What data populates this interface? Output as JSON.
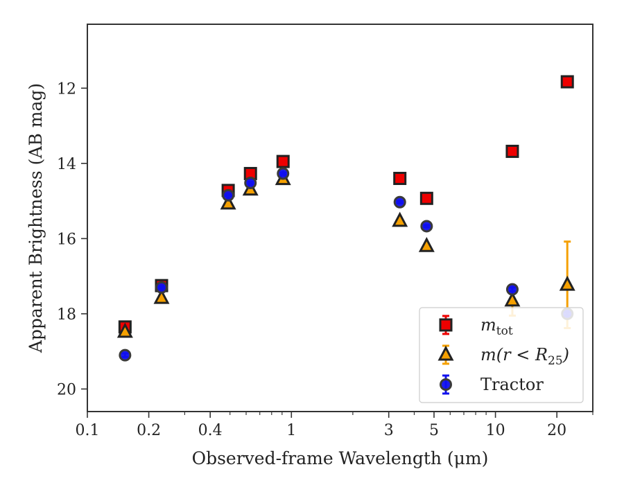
{
  "chart_data": {
    "type": "scatter",
    "xlabel": "Observed-frame Wavelength (μm)",
    "ylabel": "Apparent Brightness (AB mag)",
    "xscale": "log",
    "xlim": [
      0.1,
      30
    ],
    "ylim": [
      20.6,
      10.3
    ],
    "y_inverted": true,
    "xticks": [
      {
        "value": 0.1,
        "label": "0.1"
      },
      {
        "value": 0.2,
        "label": "0.2"
      },
      {
        "value": 0.4,
        "label": "0.4"
      },
      {
        "value": 1,
        "label": "1"
      },
      {
        "value": 3,
        "label": "3"
      },
      {
        "value": 5,
        "label": "5"
      },
      {
        "value": 10,
        "label": "10"
      },
      {
        "value": 20,
        "label": "20"
      }
    ],
    "yticks": [
      {
        "value": 12,
        "label": "12"
      },
      {
        "value": 14,
        "label": "14"
      },
      {
        "value": 16,
        "label": "16"
      },
      {
        "value": 18,
        "label": "18"
      },
      {
        "value": 20,
        "label": "20"
      }
    ],
    "grid": false,
    "legend_position": "lower-right",
    "series": [
      {
        "name": "m_tot",
        "legend_label": {
          "main": "m",
          "sub": "tot"
        },
        "marker": "square",
        "fill": "#ee0000",
        "edge": "#222222",
        "errcolor": "#ee0000",
        "points": [
          {
            "x": 0.153,
            "y": 18.35,
            "err": 0.08
          },
          {
            "x": 0.231,
            "y": 17.25,
            "err": 0.05
          },
          {
            "x": 0.49,
            "y": 14.72,
            "err": 0.03
          },
          {
            "x": 0.63,
            "y": 14.27,
            "err": 0.03
          },
          {
            "x": 0.91,
            "y": 13.95,
            "err": 0.03
          },
          {
            "x": 3.4,
            "y": 14.4,
            "err": 0.03
          },
          {
            "x": 4.6,
            "y": 14.93,
            "err": 0.03
          },
          {
            "x": 12.1,
            "y": 13.68,
            "err": 0.03
          },
          {
            "x": 22.5,
            "y": 11.83,
            "err": 0.03
          }
        ]
      },
      {
        "name": "m(r < R_25)",
        "legend_label": {
          "main": "m(r < R",
          "sub": "25",
          "tail": ")"
        },
        "marker": "triangle",
        "fill": "#f5a000",
        "edge": "#222222",
        "errcolor": "#f5a000",
        "points": [
          {
            "x": 0.153,
            "y": 18.48,
            "err": 0.06
          },
          {
            "x": 0.231,
            "y": 17.58,
            "err": 0.05
          },
          {
            "x": 0.49,
            "y": 15.07,
            "err": 0.03
          },
          {
            "x": 0.63,
            "y": 14.7,
            "err": 0.03
          },
          {
            "x": 0.91,
            "y": 14.42,
            "err": 0.03
          },
          {
            "x": 3.4,
            "y": 15.53,
            "err": 0.03
          },
          {
            "x": 4.6,
            "y": 16.2,
            "err": 0.03
          },
          {
            "x": 12.1,
            "y": 17.65,
            "err": 0.4
          },
          {
            "x": 22.5,
            "y": 17.23,
            "err": 1.15
          }
        ]
      },
      {
        "name": "Tractor",
        "legend_label": {
          "main": "Tractor"
        },
        "marker": "circle",
        "fill": "#1010ee",
        "edge": "#3a3a3a",
        "errcolor": "#1010ee",
        "points": [
          {
            "x": 0.153,
            "y": 19.1,
            "err": 0.05
          },
          {
            "x": 0.231,
            "y": 17.3,
            "err": 0.03
          },
          {
            "x": 0.49,
            "y": 14.85,
            "err": 0.03
          },
          {
            "x": 0.63,
            "y": 14.52,
            "err": 0.03
          },
          {
            "x": 0.91,
            "y": 14.27,
            "err": 0.03
          },
          {
            "x": 3.4,
            "y": 15.03,
            "err": 0.03
          },
          {
            "x": 4.6,
            "y": 15.67,
            "err": 0.03
          },
          {
            "x": 12.1,
            "y": 17.35,
            "err": 0.05
          },
          {
            "x": 22.5,
            "y": 18.0,
            "err": 0.05
          }
        ]
      }
    ]
  }
}
